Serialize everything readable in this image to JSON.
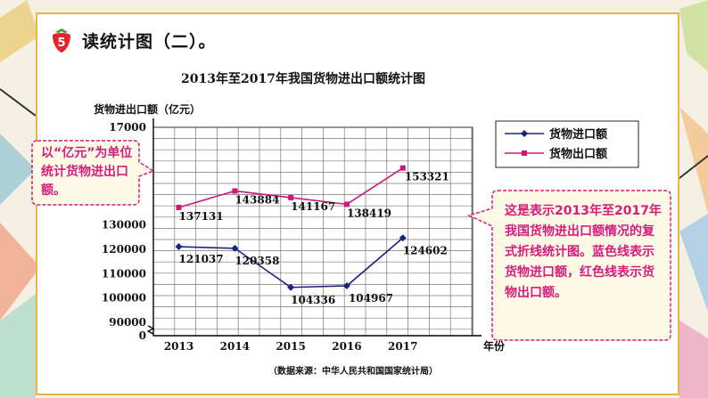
{
  "header": {
    "badge_number": "5",
    "title": "读统计图（二）。"
  },
  "callout_left": {
    "text": "以“亿元”为单位统计货物进出口额。",
    "color": "#d81b7e",
    "bg": "#fdfbe6"
  },
  "callout_right": {
    "text": "这是表示2013年至2017年我国货物进出口额情况的复式折线统计图。蓝色线表示货物进口额，红色线表示货物出口额。",
    "color": "#d81b7e",
    "bg": "#fdfbe6"
  },
  "chart_data": {
    "type": "line",
    "title": "2013年至2017年我国货物进出口额统计图",
    "ylabel": "货物进出口额（亿元）",
    "xlabel": "年份",
    "categories": [
      "2013",
      "2014",
      "2015",
      "2016",
      "2017"
    ],
    "y_tick_labels": [
      "0",
      "90000",
      "100000",
      "110000",
      "120000",
      "130000"
    ],
    "y_top_label_partial": "17000",
    "axis_break": true,
    "ylim": [
      90000,
      170000
    ],
    "grid": true,
    "legend_position": "top-right",
    "source": "（数据来源：中华人民共和国国家统计局）",
    "series": [
      {
        "name": "货物进口额",
        "color": "#1a237e",
        "marker": "diamond",
        "values": [
          121037,
          120358,
          104336,
          104967,
          124602
        ]
      },
      {
        "name": "货物出口额",
        "color": "#d1157a",
        "marker": "square",
        "values": [
          137131,
          143884,
          141167,
          138419,
          153321
        ]
      }
    ]
  }
}
